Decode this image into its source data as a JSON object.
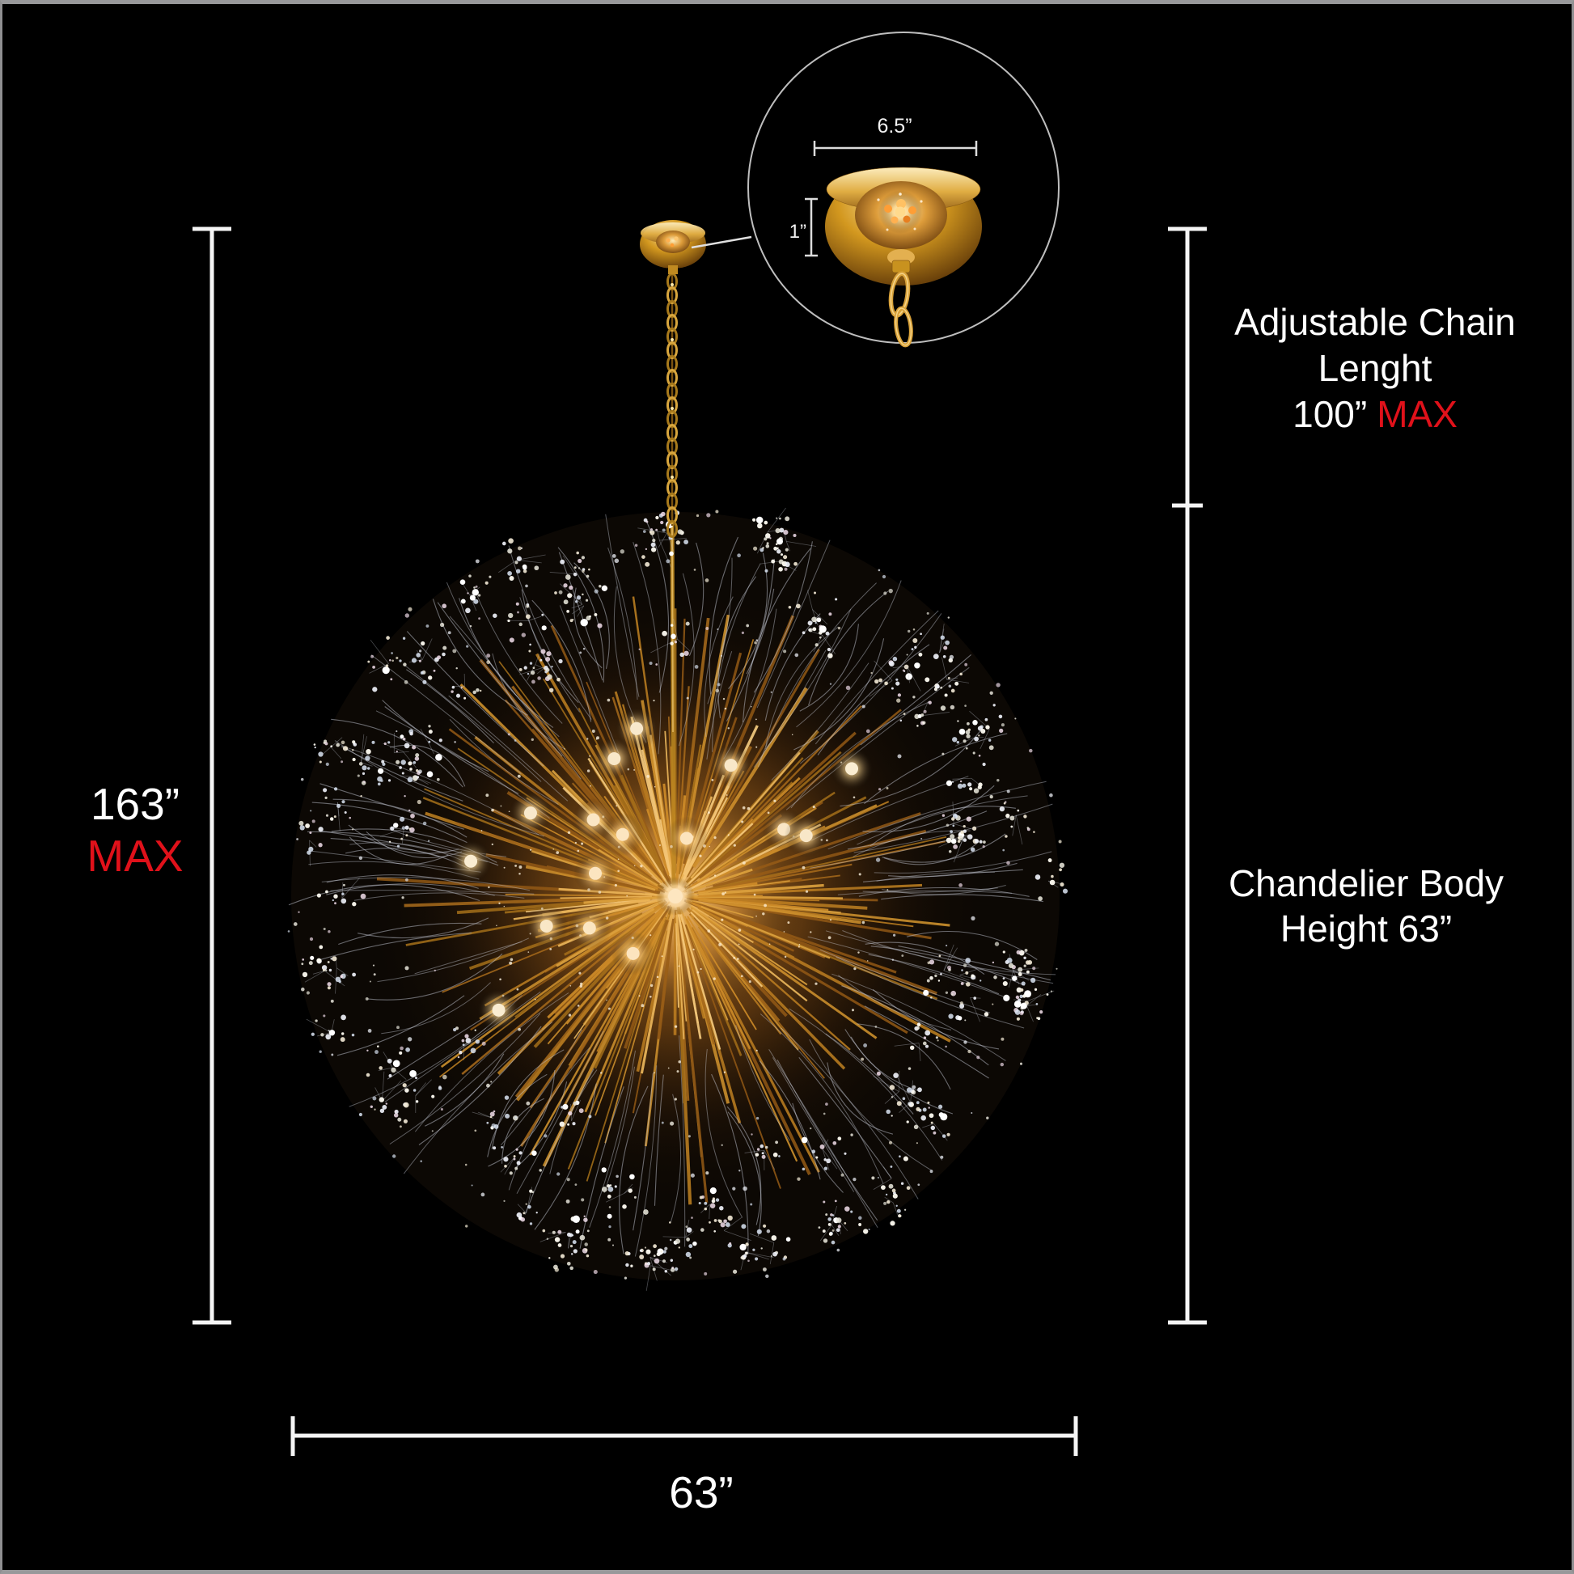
{
  "inset_detail": {
    "canopy_width": "6.5”",
    "canopy_height": "1”"
  },
  "overall_height": {
    "value": "163”",
    "qualifier": "MAX"
  },
  "chain_dimension": {
    "line1": "Adjustable Chain",
    "line2": "Lenght",
    "value": "100”",
    "qualifier": "MAX"
  },
  "body_dimension": {
    "line1": "Chandelier Body",
    "line2": "Height 63”"
  },
  "width_dimension": {
    "value": "63”"
  },
  "colors": {
    "background": "#000000",
    "dimension_lines": "#f5f5f5",
    "text": "#ffffff",
    "max_accent": "#e0111a",
    "gold": "#cf9a30"
  }
}
